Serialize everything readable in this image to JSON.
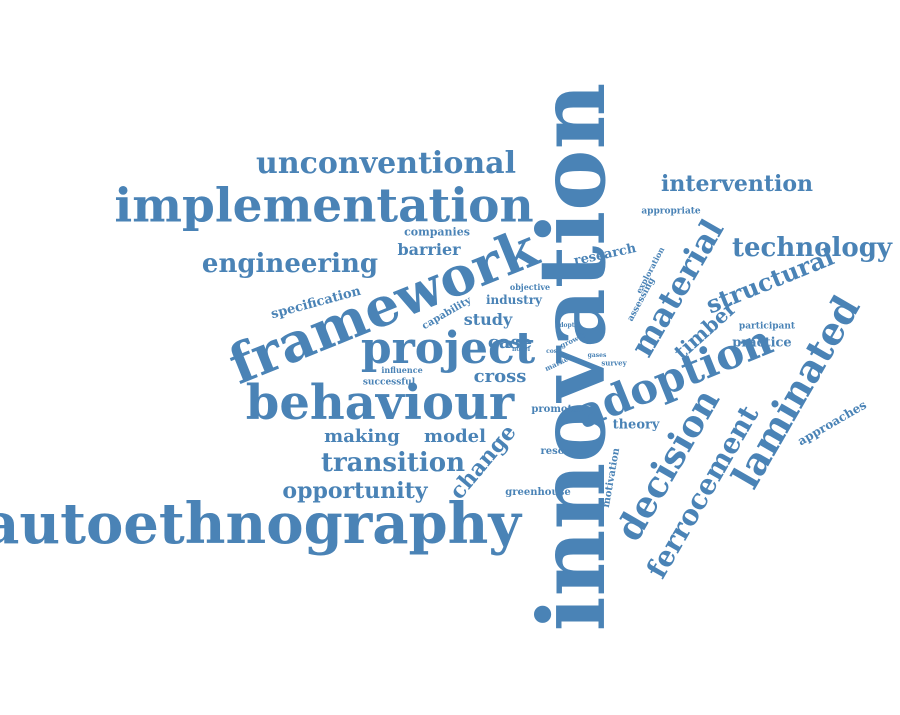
{
  "word_color": "#4a83b6",
  "background": "#ffffff",
  "words": {
    "innovation": "innovation",
    "autoethnography": "autoethnography",
    "framework": "framework",
    "implementation": "implementation",
    "behaviour": "behaviour",
    "project": "project",
    "adoption": "adoption",
    "unconventional": "unconventional",
    "laminated": "laminated",
    "decision": "decision",
    "ferrocement": "ferrocement",
    "material": "material",
    "engineering": "engineering",
    "technology": "technology",
    "transition": "transition",
    "opportunity": "opportunity",
    "structural": "structural",
    "intervention": "intervention",
    "timber": "timber",
    "change": "change",
    "cross": "cross",
    "case": "case",
    "model": "model",
    "making": "making",
    "barrier": "barrier",
    "study": "study",
    "specification": "specification",
    "research": "research",
    "theory": "theory",
    "industry": "industry",
    "practice": "practice",
    "approaches": "approaches",
    "companies": "companies",
    "capability": "capability",
    "promote": "promote",
    "resource": "resource",
    "greenhouse": "greenhouse",
    "motivation": "motivation",
    "successful": "successful",
    "participant": "participant",
    "appropriate": "appropriate",
    "assessing": "assessing",
    "exploration": "exploration",
    "objective": "objective",
    "influence": "influence",
    "growth": "growth",
    "market": "market",
    "survey": "survey",
    "gases": "gases",
    "novel": "novel",
    "adopt": "adopt",
    "cost": "cost"
  }
}
